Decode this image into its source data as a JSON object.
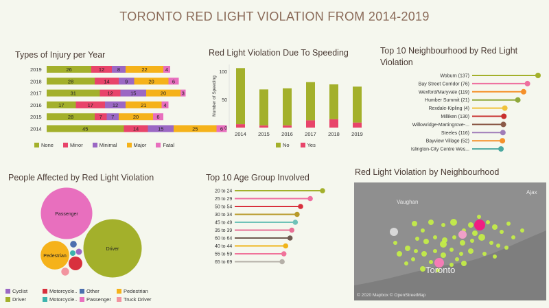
{
  "page": {
    "title": "TORONTO RED LIGHT VIOLATION FROM 2014-2019"
  },
  "colors": {
    "olive": "#a3b02b",
    "red": "#e8446a",
    "purple": "#9b68c4",
    "yellow": "#f5b21a",
    "pink": "#e86fbe",
    "maroon": "#d8303d",
    "teal": "#3cb3ad",
    "blue": "#4c6fae",
    "salmon": "#f2949f"
  },
  "injury": {
    "title": "Types of Injury per Year",
    "legend": [
      "None",
      "Minor",
      "Minimal",
      "Major",
      "Fatal"
    ],
    "chart_data": {
      "type": "bar",
      "orientation": "horizontal",
      "stacked": true,
      "categories": [
        "2019",
        "2018",
        "2017",
        "2016",
        "2015",
        "2014"
      ],
      "series": [
        {
          "name": "None",
          "values": [
            26,
            28,
            31,
            17,
            28,
            45
          ]
        },
        {
          "name": "Minor",
          "values": [
            12,
            14,
            12,
            17,
            7,
            14
          ]
        },
        {
          "name": "Minimal",
          "values": [
            8,
            9,
            15,
            12,
            7,
            15
          ]
        },
        {
          "name": "Major",
          "values": [
            22,
            20,
            20,
            21,
            20,
            25
          ]
        },
        {
          "name": "Fatal",
          "values": [
            4,
            6,
            3,
            4,
            6,
            6
          ]
        }
      ]
    }
  },
  "speeding": {
    "title": "Red Light Violation Due To Speeding",
    "legend": [
      "No",
      "Yes"
    ],
    "chart_data": {
      "type": "bar",
      "stacked": true,
      "categories": [
        "2014",
        "2015",
        "2016",
        "2017",
        "2018",
        "2019"
      ],
      "series": [
        {
          "name": "No",
          "values": [
            100,
            64,
            66,
            68,
            62,
            64
          ]
        },
        {
          "name": "Yes",
          "values": [
            6,
            4,
            4,
            13,
            15,
            9
          ]
        }
      ],
      "ylabel": "Number of Speeding",
      "yticks": [
        "0",
        "50",
        "100"
      ],
      "ylim": [
        0,
        110
      ]
    }
  },
  "neighbourhood": {
    "title_line1": "Top 10 Neighbourhood by Red Light",
    "title_line2": "Violation",
    "chart_data": {
      "type": "lollipop",
      "categories": [
        "Woburn (137)",
        "Bay Street Corridor (76)",
        "Wexford/Maryvale (119)",
        "Humber Summit (21)",
        "Rexdale-Kipling (4)",
        "Milliken (130)",
        "Willowridge-Martingrove-...",
        "Steeles (116)",
        "Bayview Village (52)",
        "Islington-City Centre Wes..."
      ],
      "values": [
        137,
        115,
        107,
        95,
        68,
        66,
        65,
        64,
        63,
        60
      ],
      "colors": [
        "#a3b02b",
        "#ee6f9f",
        "#f5902a",
        "#8fa83a",
        "#f0c23a",
        "#c8302e",
        "#8b5a48",
        "#a07cb8",
        "#f5902a",
        "#4aa8a0"
      ]
    }
  },
  "people": {
    "title": "People Affected by Red Light Violation",
    "legend": [
      "Cyclist",
      "Motorcycle..",
      "Other",
      "Pedestrian",
      "Driver",
      "Motorcycle..",
      "Passenger",
      "Truck Driver"
    ],
    "chart_data": {
      "type": "bubble",
      "items": [
        {
          "label": "Driver",
          "value": 100
        },
        {
          "label": "Passenger",
          "value": 78
        },
        {
          "label": "Pedestrian",
          "value": 24
        },
        {
          "label": "Motorcycle Driver",
          "value": 5.5
        },
        {
          "label": "Truck Driver",
          "value": 1.8
        },
        {
          "label": "Other",
          "value": 1.3
        },
        {
          "label": "Cyclist",
          "value": 1.1
        },
        {
          "label": "Motorcycle Passenger",
          "value": 0.9
        }
      ]
    }
  },
  "age": {
    "title": "Top 10 Age Group Involved",
    "chart_data": {
      "type": "lollipop",
      "categories": [
        "20 to 24",
        "25 to 29",
        "50 to 54",
        "30 to 34",
        "45 to 49",
        "35 to 39",
        "60 to 64",
        "40 to 44",
        "55 to 59",
        "65 to 69"
      ],
      "values": [
        100,
        86,
        75,
        71,
        69,
        65,
        63,
        58,
        56,
        54
      ],
      "colors": [
        "#a3b02b",
        "#ee6f9f",
        "#d8303d",
        "#b89a2a",
        "#6fc2b8",
        "#e86f95",
        "#6f5a50",
        "#f0b41a",
        "#f0739a",
        "#b5b0a8"
      ]
    }
  },
  "map": {
    "title": "Red Light Violation by Neighbourhood",
    "labels": {
      "vaughan": "Vaughan",
      "toronto": "Toronto",
      "ajax": "Ajax"
    },
    "credit": "© 2020 Mapbox © OpenStreetMap"
  }
}
